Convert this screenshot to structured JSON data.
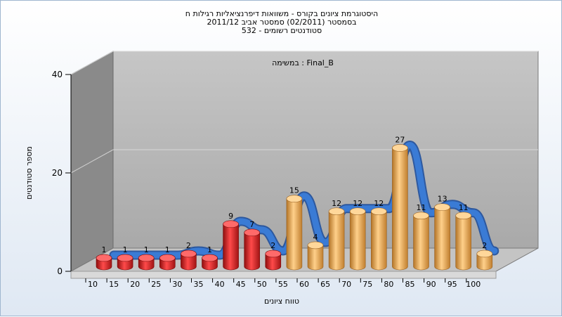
{
  "titles": [
    "היסטוגרמת ציונים בקורס - משוואות דיפרנציאליות רגילות ח",
    "בסמסטר (02/2011) סמסטר אביב 2011/12",
    "532 - סטודנטים רשומים"
  ],
  "colors": {
    "low": "#d42222",
    "high": "#e9a94a",
    "line": "#3a7bd5",
    "wall": "#8c8c8c",
    "back": "#b2b2b2",
    "floor": "#bdbdbd"
  },
  "chart_data": {
    "type": "bar",
    "annotation": "במשימה : Final_B",
    "xlabel": "טווח ציונים",
    "ylabel": "מספר סטודנטים",
    "yticks": [
      "0",
      "20",
      "40"
    ],
    "ylim": [
      0,
      40
    ],
    "categories": [
      "10",
      "15",
      "20",
      "25",
      "30",
      "35",
      "40",
      "45",
      "50",
      "55",
      "60",
      "65",
      "70",
      "75",
      "80",
      "85",
      "90",
      "95",
      "100"
    ],
    "values": [
      1,
      1,
      1,
      1,
      2,
      1,
      9,
      7,
      2,
      15,
      4,
      12,
      12,
      12,
      27,
      11,
      13,
      11,
      2
    ],
    "fail_threshold_index": 9,
    "trend_line": [
      1,
      1,
      1,
      1,
      2,
      1,
      9,
      7,
      2,
      15,
      4,
      12,
      12,
      12,
      27,
      11,
      13,
      11,
      2
    ]
  }
}
